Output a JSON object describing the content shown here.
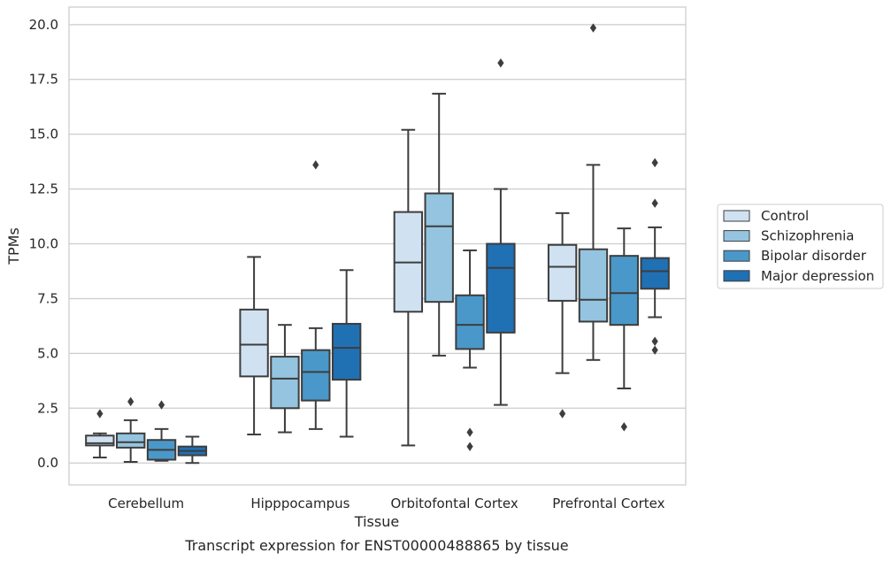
{
  "chart_data": {
    "type": "box",
    "title": "",
    "caption": "Transcript expression for ENST00000488865 by tissue",
    "xlabel": "Tissue",
    "ylabel": "TPMs",
    "ylim": [
      -1.0,
      20.8
    ],
    "yticks": [
      "0.0",
      "2.5",
      "5.0",
      "7.5",
      "10.0",
      "12.5",
      "15.0",
      "17.5",
      "20.0"
    ],
    "grid": true,
    "legend_position": "right",
    "categories": [
      "Cerebellum",
      "Hipppocampus",
      "Orbitofontal Cortex",
      "Prefrontal Cortex"
    ],
    "series": [
      {
        "name": "Control",
        "color": "#d0e1f2",
        "boxes": [
          {
            "whislo": 0.25,
            "q1": 0.8,
            "med": 0.9,
            "q3": 1.25,
            "whishi": 1.35,
            "fliers": [
              2.25
            ]
          },
          {
            "whislo": 1.3,
            "q1": 3.95,
            "med": 5.4,
            "q3": 7.0,
            "whishi": 9.4,
            "fliers": []
          },
          {
            "whislo": 0.8,
            "q1": 6.9,
            "med": 9.15,
            "q3": 11.45,
            "whishi": 15.2,
            "fliers": []
          },
          {
            "whislo": 4.1,
            "q1": 7.4,
            "med": 8.95,
            "q3": 9.95,
            "whishi": 11.4,
            "fliers": [
              2.25
            ]
          }
        ]
      },
      {
        "name": "Schizophrenia",
        "color": "#94c4df",
        "boxes": [
          {
            "whislo": 0.05,
            "q1": 0.7,
            "med": 0.95,
            "q3": 1.35,
            "whishi": 1.95,
            "fliers": [
              2.8
            ]
          },
          {
            "whislo": 1.4,
            "q1": 2.5,
            "med": 3.85,
            "q3": 4.85,
            "whishi": 6.3,
            "fliers": []
          },
          {
            "whislo": 4.9,
            "q1": 7.35,
            "med": 10.8,
            "q3": 12.3,
            "whishi": 16.85,
            "fliers": []
          },
          {
            "whislo": 4.7,
            "q1": 6.45,
            "med": 7.45,
            "q3": 9.75,
            "whishi": 13.6,
            "fliers": [
              19.85
            ]
          }
        ]
      },
      {
        "name": "Bipolar disorder",
        "color": "#4a98c9",
        "boxes": [
          {
            "whislo": 0.1,
            "q1": 0.15,
            "med": 0.6,
            "q3": 1.05,
            "whishi": 1.55,
            "fliers": [
              2.65
            ]
          },
          {
            "whislo": 1.55,
            "q1": 2.85,
            "med": 4.15,
            "q3": 5.15,
            "whishi": 6.15,
            "fliers": [
              13.6
            ]
          },
          {
            "whislo": 4.35,
            "q1": 5.2,
            "med": 6.3,
            "q3": 7.65,
            "whishi": 9.7,
            "fliers": [
              1.4,
              0.75
            ]
          },
          {
            "whislo": 3.4,
            "q1": 6.3,
            "med": 7.75,
            "q3": 9.45,
            "whishi": 10.7,
            "fliers": [
              1.65
            ]
          }
        ]
      },
      {
        "name": "Major depression",
        "color": "#2070b4",
        "boxes": [
          {
            "whislo": 0.0,
            "q1": 0.35,
            "med": 0.55,
            "q3": 0.75,
            "whishi": 1.2,
            "fliers": []
          },
          {
            "whislo": 1.2,
            "q1": 3.8,
            "med": 5.25,
            "q3": 6.35,
            "whishi": 8.8,
            "fliers": []
          },
          {
            "whislo": 2.65,
            "q1": 5.95,
            "med": 8.9,
            "q3": 10.0,
            "whishi": 12.5,
            "fliers": [
              18.25
            ]
          },
          {
            "whislo": 6.65,
            "q1": 7.95,
            "med": 8.75,
            "q3": 9.35,
            "whishi": 10.75,
            "fliers": [
              13.7,
              11.85,
              5.55,
              5.15
            ]
          }
        ]
      }
    ]
  }
}
